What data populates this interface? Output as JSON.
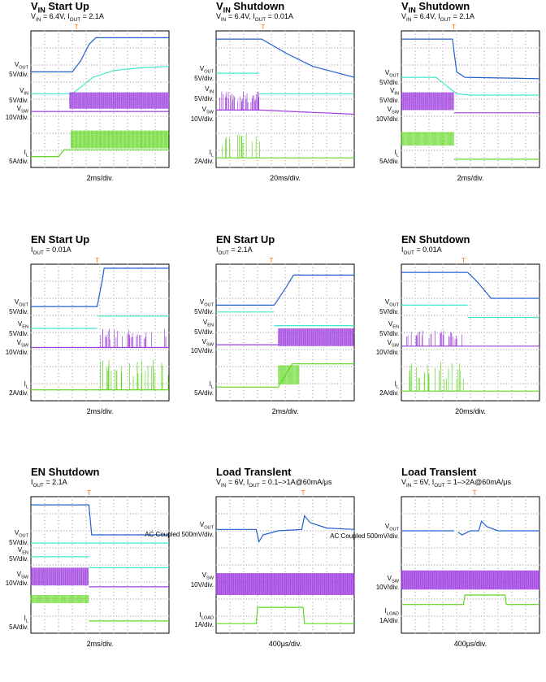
{
  "colors": {
    "vout": "#2060d0",
    "vin": "#40e8c8",
    "sw": "#a040e0",
    "il": "#60d820",
    "trig": "#ff6a00"
  },
  "chart_data": [
    {
      "type": "line",
      "title_main": "V",
      "title_sub": "IN",
      "title_rest": " Start Up",
      "subtitle_html": "V<sub>IN</sub> = 6.4V, I<sub>OUT</sub> = 2.1A",
      "timebase": "2ms/div.",
      "channels": [
        {
          "name": "VOUT",
          "scale": "5V/div."
        },
        {
          "name": "VIN",
          "scale": "5V/div."
        },
        {
          "name": "VSW",
          "scale": "10V/div."
        },
        {
          "name": "IL",
          "scale": "5A/div."
        }
      ]
    },
    {
      "type": "line",
      "title_main": "V",
      "title_sub": "IN",
      "title_rest": " Shutdown",
      "subtitle_html": "V<sub>IN</sub> = 6.4V, I<sub>OUT</sub> = 0.01A",
      "timebase": "20ms/div.",
      "channels": [
        {
          "name": "VOUT",
          "scale": "5V/div."
        },
        {
          "name": "VIN",
          "scale": "5V/div."
        },
        {
          "name": "VSW",
          "scale": "10V/div."
        },
        {
          "name": "IL",
          "scale": "2A/div."
        }
      ]
    },
    {
      "type": "line",
      "title_main": "V",
      "title_sub": "IN",
      "title_rest": " Shutdown",
      "subtitle_html": "V<sub>IN</sub> = 6.4V, I<sub>OUT</sub> = 2.1A",
      "timebase": "2ms/div.",
      "channels": [
        {
          "name": "VOUT",
          "scale": "5V/div."
        },
        {
          "name": "VIN",
          "scale": "5V/div."
        },
        {
          "name": "VSW",
          "scale": "10V/div."
        },
        {
          "name": "IL",
          "scale": "5A/div."
        }
      ]
    },
    {
      "type": "line",
      "title_main": "EN Start Up",
      "subtitle_html": "I<sub>OUT</sub> = 0.01A",
      "timebase": "2ms/div.",
      "channels": [
        {
          "name": "VOUT",
          "scale": "5V/div."
        },
        {
          "name": "VEN",
          "scale": "5V/div."
        },
        {
          "name": "VSW",
          "scale": "10V/div."
        },
        {
          "name": "IL",
          "scale": "2A/div."
        }
      ]
    },
    {
      "type": "line",
      "title_main": "EN Start Up",
      "subtitle_html": "I<sub>OUT</sub> = 2.1A",
      "timebase": "2ms/div.",
      "channels": [
        {
          "name": "VOUT",
          "scale": "5V/div."
        },
        {
          "name": "VEN",
          "scale": "5V/div."
        },
        {
          "name": "VSW",
          "scale": "10V/div."
        },
        {
          "name": "IL",
          "scale": "5A/div."
        }
      ]
    },
    {
      "type": "line",
      "title_main": "EN Shutdown",
      "subtitle_html": "I<sub>OUT</sub> = 0.01A",
      "timebase": "20ms/div.",
      "channels": [
        {
          "name": "VOUT",
          "scale": "5V/div."
        },
        {
          "name": "VEN",
          "scale": "5V/div."
        },
        {
          "name": "VSW",
          "scale": "10V/div."
        },
        {
          "name": "IL",
          "scale": "2A/div."
        }
      ]
    },
    {
      "type": "line",
      "title_main": "EN Shutdown",
      "subtitle_html": "I<sub>OUT</sub> = 2.1A",
      "timebase": "2ms/div.",
      "channels": [
        {
          "name": "VOUT",
          "scale": "5V/div."
        },
        {
          "name": "VEN",
          "scale": "5V/div."
        },
        {
          "name": "VSW",
          "scale": "10V/div."
        },
        {
          "name": "IL",
          "scale": "5A/div."
        }
      ]
    },
    {
      "type": "line",
      "title_main": "Load Translent",
      "subtitle_html": "V<sub>IN</sub> = 6V, I<sub>OUT</sub> = 0.1&#8211;&gt;1A@60mA/&#956;s",
      "timebase": "400µs/div.",
      "channels": [
        {
          "name": "VOUT",
          "scale": "AC Coupled 500mV/div."
        },
        {
          "name": "VSW",
          "scale": "10V/div."
        },
        {
          "name": "ILOAD",
          "scale": "1A/div."
        }
      ]
    },
    {
      "type": "line",
      "title_main": "Load Translent",
      "subtitle_html": "V<sub>IN</sub> = 6V, I<sub>OUT</sub> = 1&#8211;&gt;2A@60mA/&#956;s",
      "timebase": "400µs/div.",
      "channels": [
        {
          "name": "VOUT",
          "scale": "AC Coupled 500mV/div."
        },
        {
          "name": "VSW",
          "scale": "10V/div."
        },
        {
          "name": "ILOAD",
          "scale": "1A/div."
        }
      ]
    }
  ]
}
